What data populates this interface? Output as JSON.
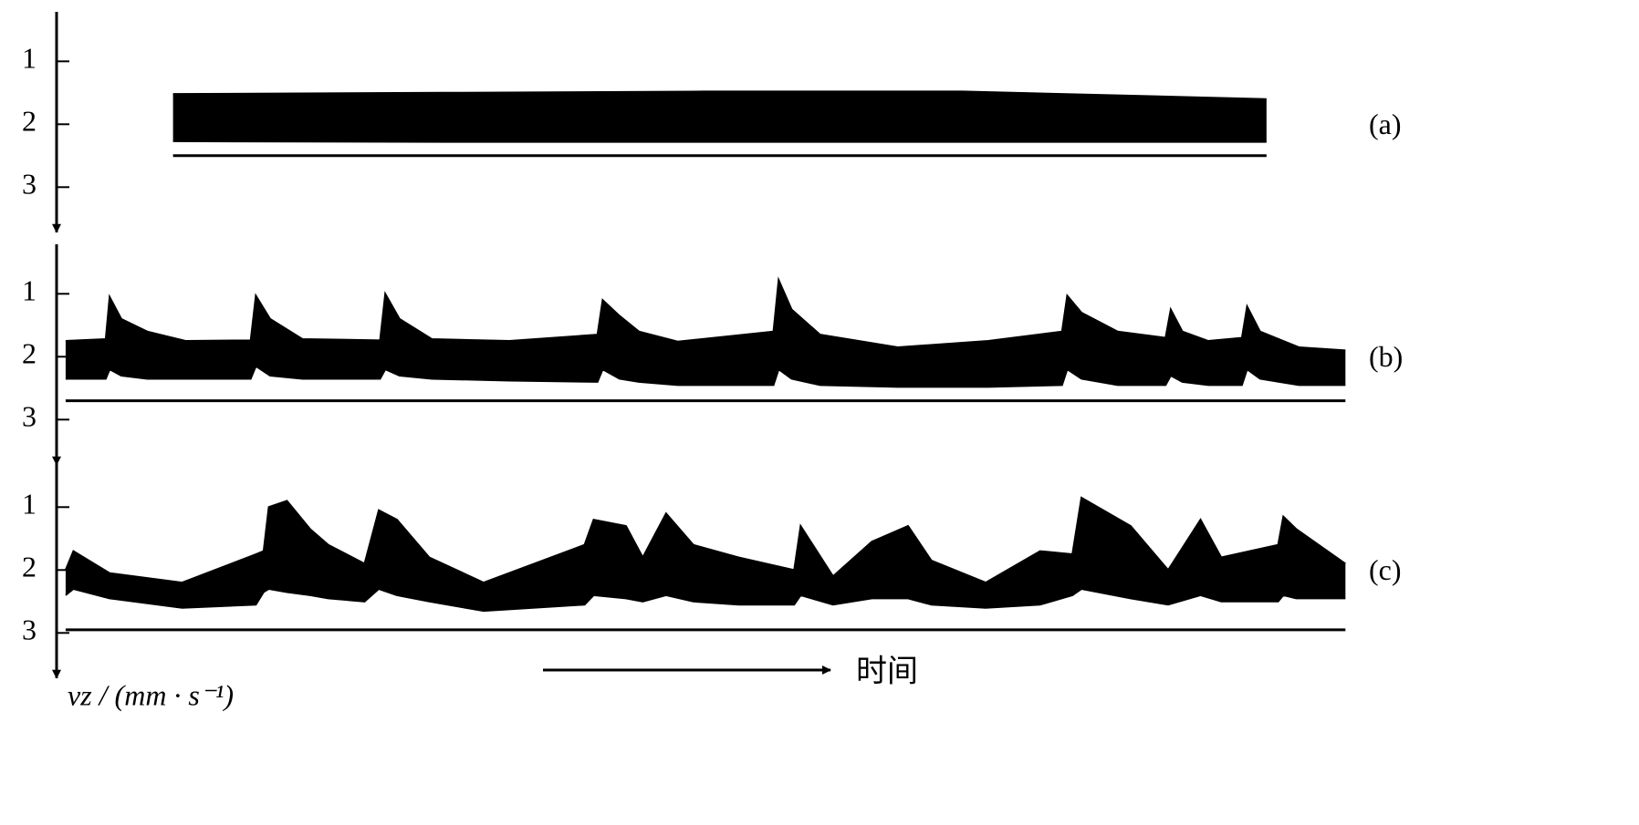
{
  "chart_data": [
    {
      "type": "band",
      "label": "(a)",
      "xlim": [
        0,
        100
      ],
      "ylim": [
        0.3,
        3.6
      ],
      "yticks": [
        1,
        2,
        3
      ],
      "inverted": true,
      "baseline": 2.5,
      "x": [
        9,
        30,
        50,
        70,
        93.5
      ],
      "series": [
        {
          "color": "#000000",
          "values": [
            1.52,
            1.5,
            1.48,
            1.48,
            1.6
          ]
        },
        {
          "color": "#000000",
          "values": [
            2.27,
            2.28,
            2.28,
            2.28,
            2.28
          ]
        }
      ]
    },
    {
      "type": "band",
      "label": "(b)",
      "xlim": [
        0,
        100
      ],
      "ylim": [
        0.3,
        3.6
      ],
      "yticks": [
        1,
        2,
        3
      ],
      "inverted": true,
      "baseline": 2.7,
      "x": [
        0.7,
        3.8,
        4.1,
        5,
        7,
        10,
        15.0,
        15.4,
        16.5,
        19,
        25.0,
        25.4,
        26.5,
        29,
        35,
        41.8,
        42.2,
        43.5,
        45,
        48,
        55.4,
        55.8,
        56.8,
        59,
        65,
        72,
        77.7,
        78.1,
        79.2,
        82,
        85.7,
        86.1,
        87,
        89,
        91.6,
        92.0,
        93,
        96,
        99.6
      ],
      "series": [
        {
          "color": "#000000",
          "values": [
            1.75,
            1.72,
            1.05,
            1.4,
            1.6,
            1.75,
            1.74,
            1.03,
            1.4,
            1.72,
            1.74,
            1.0,
            1.4,
            1.72,
            1.75,
            1.65,
            1.1,
            1.35,
            1.6,
            1.76,
            1.6,
            0.78,
            1.25,
            1.65,
            1.85,
            1.75,
            1.6,
            1.03,
            1.3,
            1.6,
            1.7,
            1.25,
            1.6,
            1.75,
            1.7,
            1.2,
            1.6,
            1.85,
            1.9
          ]
        },
        {
          "color": "#000000",
          "values": [
            2.35,
            2.35,
            2.2,
            2.3,
            2.35,
            2.35,
            2.35,
            2.15,
            2.3,
            2.35,
            2.35,
            2.2,
            2.3,
            2.35,
            2.38,
            2.4,
            2.2,
            2.35,
            2.4,
            2.45,
            2.45,
            2.2,
            2.35,
            2.45,
            2.48,
            2.48,
            2.45,
            2.2,
            2.35,
            2.45,
            2.45,
            2.3,
            2.4,
            2.45,
            2.45,
            2.2,
            2.35,
            2.45,
            2.45
          ]
        }
      ]
    },
    {
      "type": "band",
      "label": "(c)",
      "xlim": [
        0,
        100
      ],
      "ylim": [
        0.3,
        3.6
      ],
      "yticks": [
        1,
        2,
        3
      ],
      "inverted": true,
      "baseline": 2.95,
      "xlabel": "时间",
      "ylabel": "vz / (mm · s⁻¹)",
      "x": [
        0.7,
        1.3,
        4.1,
        9.7,
        15.4,
        16.0,
        16.4,
        17.8,
        19.6,
        21.0,
        23.8,
        24.9,
        26.3,
        28.8,
        33.0,
        40.8,
        41.5,
        44.0,
        45.3,
        47.1,
        49.2,
        52.7,
        57.0,
        57.5,
        60.0,
        63.0,
        65.8,
        67.6,
        71.8,
        76.0,
        78.5,
        79.2,
        83.0,
        85.9,
        88.4,
        90.0,
        94.4,
        94.8,
        95.8,
        99.6
      ],
      "series": [
        {
          "color": "#000000",
          "values": [
            2.0,
            1.7,
            2.05,
            2.2,
            1.75,
            1.7,
            1.0,
            0.9,
            1.35,
            1.6,
            1.9,
            1.05,
            1.2,
            1.8,
            2.2,
            1.6,
            1.2,
            1.3,
            1.8,
            1.1,
            1.6,
            1.8,
            2.0,
            1.3,
            2.1,
            1.55,
            1.3,
            1.85,
            2.2,
            1.7,
            1.75,
            0.85,
            1.3,
            2.0,
            1.2,
            1.8,
            1.6,
            1.15,
            1.35,
            1.9
          ]
        },
        {
          "color": "#000000",
          "values": [
            2.4,
            2.3,
            2.45,
            2.6,
            2.55,
            2.35,
            2.3,
            2.35,
            2.4,
            2.45,
            2.5,
            2.3,
            2.4,
            2.5,
            2.65,
            2.55,
            2.4,
            2.45,
            2.5,
            2.4,
            2.5,
            2.55,
            2.55,
            2.4,
            2.55,
            2.45,
            2.45,
            2.55,
            2.6,
            2.55,
            2.4,
            2.3,
            2.45,
            2.55,
            2.4,
            2.5,
            2.5,
            2.4,
            2.45,
            2.45
          ]
        }
      ]
    }
  ]
}
